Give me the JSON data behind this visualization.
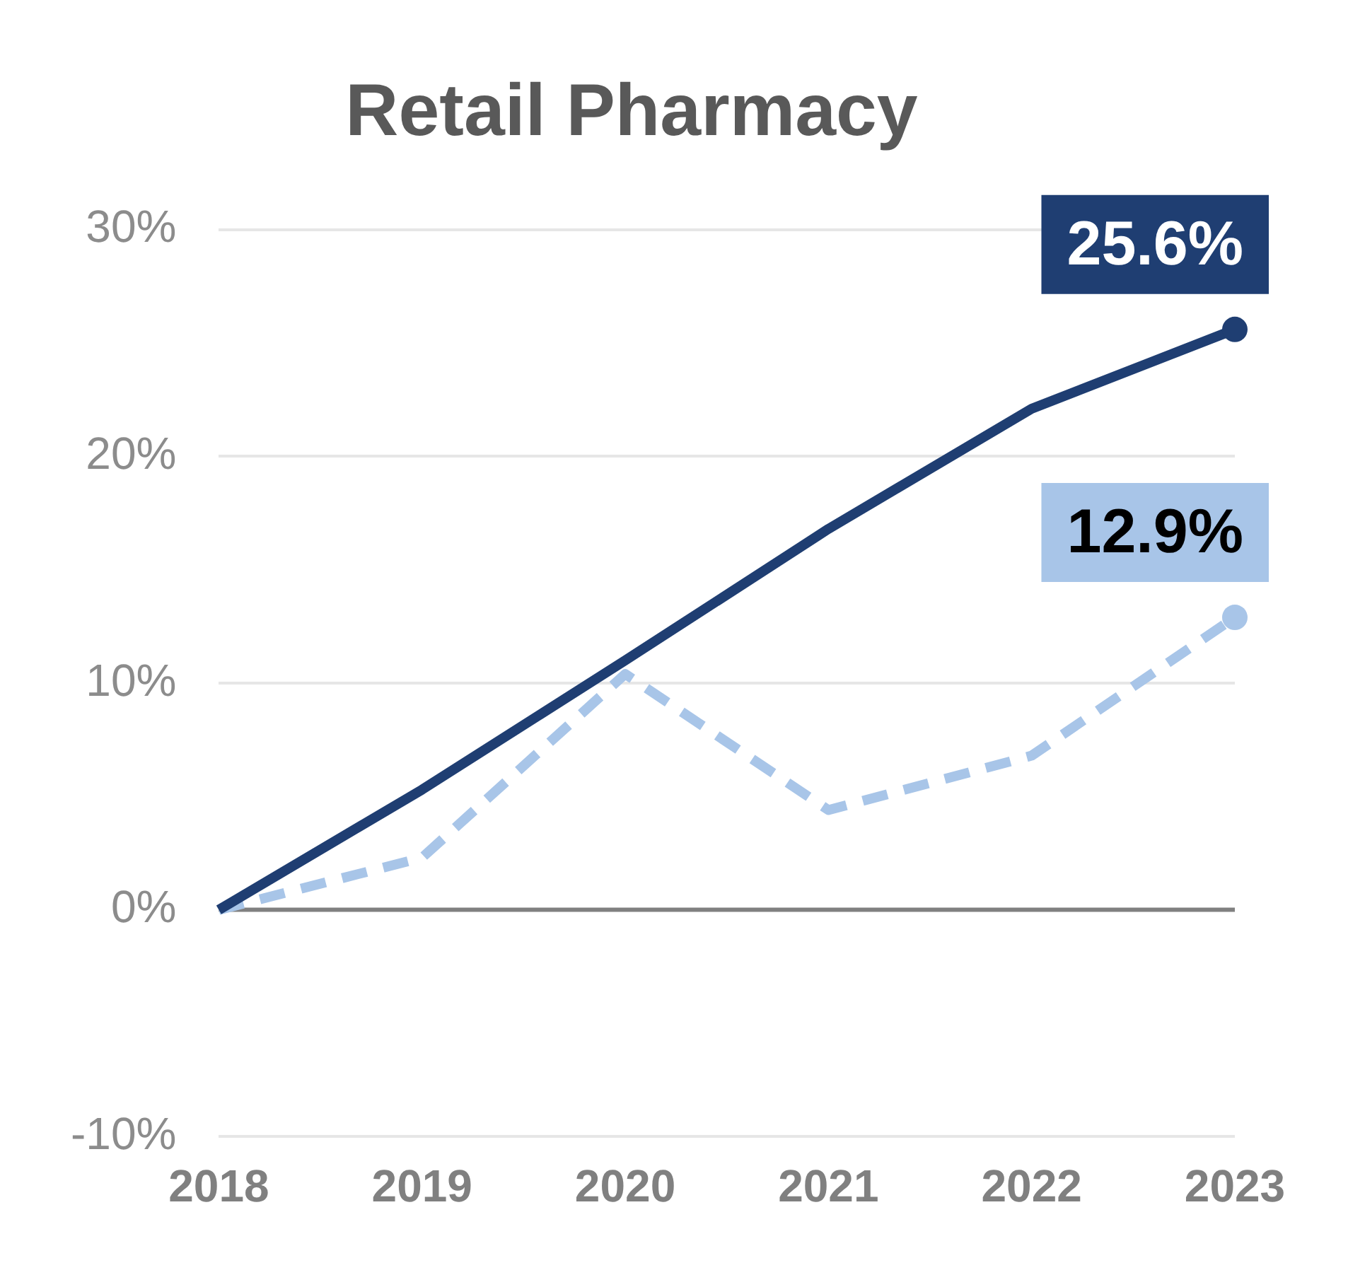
{
  "chart_data": {
    "type": "line",
    "title": "Retail Pharmacy",
    "categories": [
      "2018",
      "2019",
      "2020",
      "2021",
      "2022",
      "2023"
    ],
    "series": [
      {
        "color": "#1f3e72",
        "line_style": "solid",
        "values": [
          0,
          5.3,
          11.0,
          16.8,
          22.1,
          25.6
        ],
        "value_labels": [
          null,
          null,
          null,
          null,
          null,
          "25.6%"
        ]
      },
      {
        "color": "#a8c5e8",
        "line_style": "dashed",
        "values": [
          0,
          2.3,
          10.4,
          4.4,
          6.8,
          12.9
        ],
        "value_labels": [
          null,
          null,
          null,
          null,
          null,
          "12.9%"
        ]
      }
    ],
    "ylim": [
      -10,
      30
    ],
    "yticks": [
      {
        "value": -10,
        "label": "-10%"
      },
      {
        "value": 0,
        "label": "0%"
      },
      {
        "value": 10,
        "label": "10%"
      },
      {
        "value": 20,
        "label": "20%"
      },
      {
        "value": 30,
        "label": "30%"
      }
    ],
    "grid": "y",
    "legend": false,
    "ref_lines": [
      {
        "axis": "y",
        "value": 0,
        "color": "#808080"
      }
    ]
  }
}
